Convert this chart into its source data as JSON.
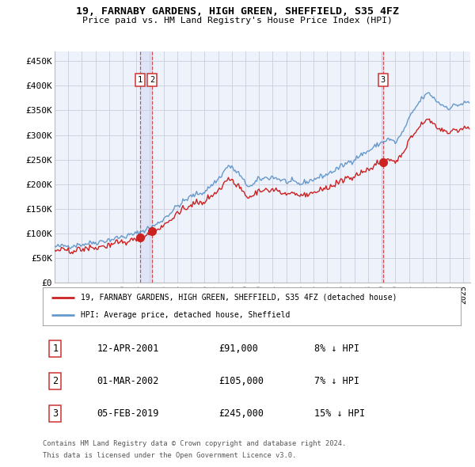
{
  "title_line1": "19, FARNABY GARDENS, HIGH GREEN, SHEFFIELD, S35 4FZ",
  "title_line2": "Price paid vs. HM Land Registry's House Price Index (HPI)",
  "xlim_start": 1995.0,
  "xlim_end": 2025.5,
  "ylim_min": 0,
  "ylim_max": 470000,
  "yticks": [
    0,
    50000,
    100000,
    150000,
    200000,
    250000,
    300000,
    350000,
    400000,
    450000
  ],
  "ytick_labels": [
    "£0",
    "£50K",
    "£100K",
    "£150K",
    "£200K",
    "£250K",
    "£300K",
    "£350K",
    "£400K",
    "£450K"
  ],
  "hpi_color": "#6699cc",
  "property_color": "#cc2222",
  "grid_color": "#ccccdd",
  "background_color": "#ffffff",
  "plot_bg_color": "#eef2fa",
  "sale1_t": 2001.292,
  "sale1_price": 91000,
  "sale2_t": 2002.167,
  "sale2_price": 105000,
  "sale3_t": 2019.083,
  "sale3_price": 245000,
  "legend_property_label": "19, FARNABY GARDENS, HIGH GREEN, SHEFFIELD, S35 4FZ (detached house)",
  "legend_hpi_label": "HPI: Average price, detached house, Sheffield",
  "table_rows": [
    {
      "num": "1",
      "date": "12-APR-2001",
      "price": "£91,000",
      "hpi": "8% ↓ HPI"
    },
    {
      "num": "2",
      "date": "01-MAR-2002",
      "price": "£105,000",
      "hpi": "7% ↓ HPI"
    },
    {
      "num": "3",
      "date": "05-FEB-2019",
      "price": "£245,000",
      "hpi": "15% ↓ HPI"
    }
  ],
  "footnote1": "Contains HM Land Registry data © Crown copyright and database right 2024.",
  "footnote2": "This data is licensed under the Open Government Licence v3.0.",
  "hpi_anchors_t": [
    1995.0,
    1996.0,
    1997.0,
    1998.0,
    1999.0,
    2000.0,
    2001.0,
    2001.5,
    2002.5,
    2003.0,
    2004.0,
    2005.0,
    2006.0,
    2007.0,
    2007.75,
    2008.5,
    2009.0,
    2009.5,
    2010.0,
    2011.0,
    2012.0,
    2013.0,
    2014.0,
    2015.0,
    2016.0,
    2017.0,
    2018.0,
    2019.0,
    2019.5,
    2020.0,
    2020.5,
    2021.0,
    2021.5,
    2022.0,
    2022.5,
    2023.0,
    2023.5,
    2024.0,
    2024.5,
    2025.4
  ],
  "hpi_anchors_v": [
    72000,
    75000,
    78000,
    82000,
    87000,
    93000,
    99000,
    106000,
    118000,
    130000,
    155000,
    175000,
    185000,
    210000,
    238000,
    222000,
    200000,
    196000,
    210000,
    215000,
    205000,
    200000,
    210000,
    220000,
    235000,
    252000,
    267000,
    285000,
    292000,
    284000,
    303000,
    332000,
    356000,
    376000,
    385000,
    370000,
    360000,
    356000,
    361000,
    366000
  ]
}
